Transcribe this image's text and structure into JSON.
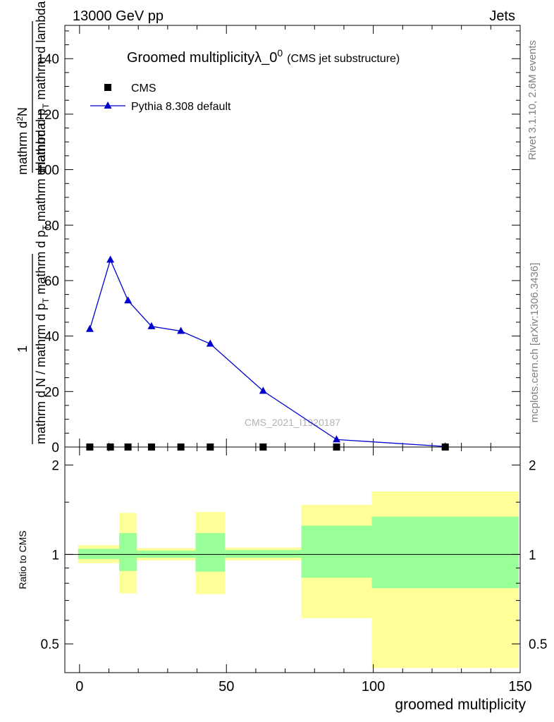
{
  "header": {
    "left": "13000 GeV pp",
    "right": "Jets"
  },
  "side_labels": {
    "version": "Rivet 3.1.10,  2.6M events",
    "source": "mcplots.cern.ch [arXiv:1306.3436]"
  },
  "watermark": "CMS_2021_I1920187",
  "chart_data": [
    {
      "type": "line",
      "title": "Groomed multiplicityλ_0",
      "title_superscript": "0",
      "subtitle": "(CMS jet substructure)",
      "ylabel_fraction_numerator_top": "1",
      "ylabel_fraction_denominator_top": "mathrm d N / mathrm d p_T mathrm d p_T mathrm d lambda",
      "ylabel_numerator": "mathrm d²N",
      "ylabel_num_prefix": "mathrm d",
      "ylabel_num_sup": "2",
      "ylabel_num_suffix": "N",
      "ylabel_den": "mathrm d p",
      "ylabel_den_sub": "T",
      "ylabel_den_rest": " mathrm d lambda",
      "ylabel_den_left": "mathrm d N / mathrm d p",
      "ylabel_den_left_sub": "T",
      "ylabel_den_left_rest": " mathrm d p",
      "ylabel_den_left_sub2": "T",
      "ylabel_den_left_rest2": " mathrm d lambda",
      "xlim": [
        -5,
        150
      ],
      "ylim": [
        0,
        152
      ],
      "yticks": [
        0,
        20,
        40,
        60,
        80,
        100,
        120,
        140
      ],
      "legend_position": "top-left",
      "series": [
        {
          "name": "CMS",
          "marker": "square",
          "color": "#000000",
          "x": [
            3.5,
            10.5,
            16.5,
            24.5,
            34.5,
            44.5,
            62.5,
            87.5,
            124.5
          ],
          "y": [
            0,
            0,
            0,
            0,
            0,
            0,
            0,
            0,
            0
          ]
        },
        {
          "name": "Pythia 8.308 default",
          "marker": "triangle",
          "color": "#0000cc",
          "x": [
            3.5,
            10.5,
            16.5,
            24.5,
            34.5,
            44.5,
            62.5,
            87.5,
            124.5
          ],
          "y": [
            42.5,
            67.5,
            52.8,
            43.5,
            41.8,
            37.2,
            20.2,
            2.7,
            0.2
          ]
        }
      ]
    },
    {
      "type": "area",
      "ylabel": "Ratio to CMS",
      "xlabel": "groomed multiplicity",
      "xlim": [
        -5,
        150
      ],
      "xticks": [
        0,
        50,
        100,
        150
      ],
      "ylim": [
        0.4,
        2.3
      ],
      "ytick_labels": [
        "0.5",
        "1",
        "2"
      ],
      "ytick_values": [
        0.5,
        1,
        2
      ],
      "reference_line": 1,
      "bins": [
        {
          "lo": -0.5,
          "hi": 13.5,
          "yellow": [
            0.935,
            1.075
          ],
          "green": [
            0.965,
            1.045
          ]
        },
        {
          "lo": 13.5,
          "hi": 19.5,
          "yellow": [
            0.74,
            1.38
          ],
          "green": [
            0.88,
            1.18
          ]
        },
        {
          "lo": 19.5,
          "hi": 39.5,
          "yellow": [
            0.955,
            1.05
          ],
          "green": [
            0.975,
            1.03
          ]
        },
        {
          "lo": 39.5,
          "hi": 49.5,
          "yellow": [
            0.735,
            1.39
          ],
          "green": [
            0.875,
            1.18
          ]
        },
        {
          "lo": 49.5,
          "hi": 75.5,
          "yellow": [
            0.955,
            1.055
          ],
          "green": [
            0.975,
            1.035
          ]
        },
        {
          "lo": 75.5,
          "hi": 99.5,
          "yellow": [
            0.61,
            1.47
          ],
          "green": [
            0.835,
            1.25
          ]
        },
        {
          "lo": 99.5,
          "hi": 149.5,
          "yellow": [
            0.415,
            1.63
          ],
          "green": [
            0.77,
            1.34
          ]
        }
      ],
      "colors": {
        "yellow": "#ffff99",
        "green": "#99ff99"
      }
    }
  ]
}
